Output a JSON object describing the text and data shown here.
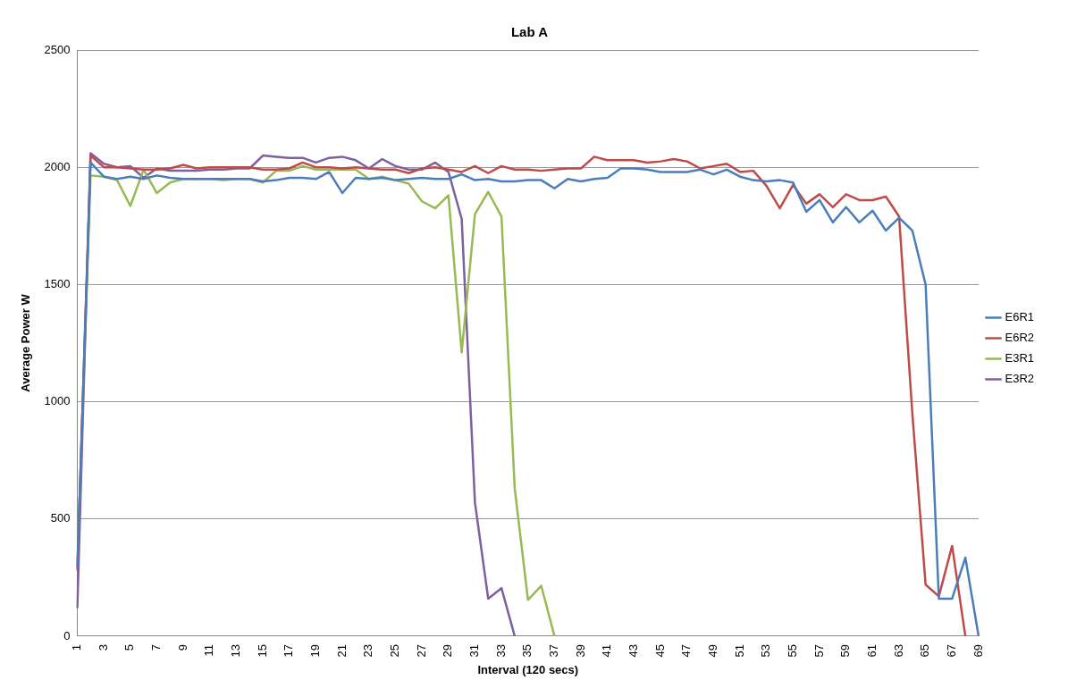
{
  "chart_data": {
    "type": "line",
    "title": "Lab A",
    "xlabel": "Interval (120 secs)",
    "ylabel": "Average Power W",
    "categories": [
      "1",
      null,
      "3",
      null,
      "5",
      null,
      "7",
      null,
      "9",
      null,
      "11",
      null,
      "13",
      null,
      "15",
      null,
      "17",
      null,
      "19",
      null,
      "21",
      null,
      "23",
      null,
      "25",
      null,
      "27",
      null,
      "29",
      null,
      "31",
      null,
      "33",
      null,
      "35",
      null,
      "37",
      null,
      "39",
      null,
      "41",
      null,
      "43",
      null,
      "45",
      null,
      "47",
      null,
      "49",
      null,
      "51",
      null,
      "53",
      null,
      "55",
      null,
      "57",
      null,
      "59",
      null,
      "61",
      null,
      "63",
      null,
      "65",
      null,
      "67",
      null,
      "69"
    ],
    "ylim": [
      0,
      2500
    ],
    "yticks": [
      0,
      500,
      1000,
      1500,
      2000,
      2500
    ],
    "grid": "y",
    "legend": "right",
    "marker": "none",
    "series": [
      {
        "name": "E6R1",
        "color": "#4a7ebb",
        "values": [
          290,
          2020,
          1960,
          1950,
          1960,
          1950,
          1965,
          1955,
          1950,
          1950,
          1950,
          1950,
          1950,
          1950,
          1940,
          1945,
          1955,
          1955,
          1950,
          1980,
          1890,
          1955,
          1950,
          1955,
          1945,
          1950,
          1955,
          1950,
          1950,
          1970,
          1945,
          1950,
          1940,
          1940,
          1945,
          1945,
          1910,
          1950,
          1940,
          1950,
          1955,
          1995,
          1995,
          1990,
          1980,
          1980,
          1980,
          1990,
          1970,
          1990,
          1960,
          1945,
          1940,
          1945,
          1935,
          1810,
          1860,
          1765,
          1830,
          1765,
          1815,
          1730,
          1785,
          1730,
          1500,
          160,
          160,
          335,
          0
        ]
      },
      {
        "name": "E6R2",
        "color": "#be4b48",
        "values": [
          280,
          2050,
          2000,
          2000,
          1995,
          1990,
          1990,
          1995,
          2010,
          1995,
          2000,
          2000,
          2000,
          2000,
          1990,
          1990,
          1995,
          2020,
          2000,
          2000,
          1995,
          2000,
          1995,
          1990,
          1990,
          1975,
          1995,
          2000,
          1990,
          1980,
          2005,
          1975,
          2005,
          1990,
          1990,
          1985,
          1990,
          1995,
          1995,
          2045,
          2030,
          2030,
          2030,
          2020,
          2025,
          2035,
          2025,
          1995,
          2005,
          2015,
          1980,
          1985,
          1920,
          1825,
          1925,
          1845,
          1885,
          1830,
          1885,
          1860,
          1860,
          1875,
          1790,
          950,
          220,
          170,
          385,
          0,
          null
        ]
      },
      {
        "name": "E3R1",
        "color": "#98b954",
        "values": [
          300,
          1965,
          1960,
          1945,
          1835,
          1990,
          1890,
          1935,
          1950,
          1950,
          1950,
          1945,
          1950,
          1950,
          1935,
          1985,
          1985,
          2005,
          1990,
          1990,
          1990,
          1990,
          1950,
          1960,
          1945,
          1930,
          1855,
          1825,
          1880,
          1210,
          1800,
          1895,
          1790,
          630,
          155,
          215,
          0,
          null,
          null,
          null,
          null,
          null,
          null,
          null,
          null,
          null,
          null,
          null,
          null,
          null,
          null,
          null,
          null,
          null,
          null,
          null,
          null,
          null,
          null,
          null,
          null,
          null,
          null,
          null,
          null,
          null,
          null,
          null,
          null
        ]
      },
      {
        "name": "E3R2",
        "color": "#7d60a0",
        "values": [
          120,
          2060,
          2015,
          2000,
          2005,
          1955,
          1995,
          1985,
          1985,
          1985,
          1990,
          1990,
          1995,
          1995,
          2050,
          2045,
          2040,
          2040,
          2020,
          2040,
          2045,
          2030,
          1995,
          2035,
          2005,
          1990,
          1990,
          2020,
          1980,
          1780,
          570,
          160,
          205,
          0,
          null,
          null,
          null,
          null,
          null,
          null,
          null,
          null,
          null,
          null,
          null,
          null,
          null,
          null,
          null,
          null,
          null,
          null,
          null,
          null,
          null,
          null,
          null,
          null,
          null,
          null,
          null,
          null,
          null,
          null,
          null,
          null,
          null,
          null,
          null
        ]
      }
    ]
  }
}
